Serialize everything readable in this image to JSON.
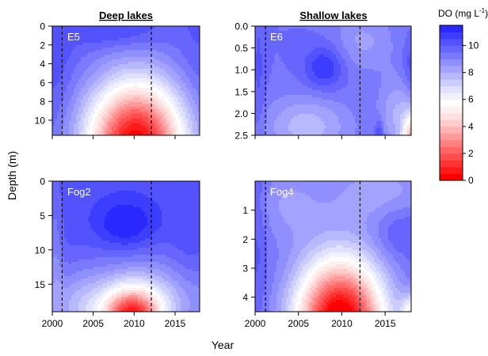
{
  "chart_data": {
    "type": "heatmap",
    "column_titles": [
      "Deep lakes",
      "Shallow lakes"
    ],
    "xlabel": "Year",
    "ylabel": "Depth (m)",
    "colorbar": {
      "title": "DO (mg L",
      "title_sup": "-1",
      "title_end": ")",
      "range": [
        0,
        11.5
      ],
      "ticks": [
        0,
        2,
        4,
        6,
        8,
        10
      ],
      "levels": [
        {
          "from": 0.0,
          "to": 0.5,
          "color": "#ff0000"
        },
        {
          "from": 0.5,
          "to": 1.0,
          "color": "#ff1a1a"
        },
        {
          "from": 1.0,
          "to": 1.5,
          "color": "#ff3333"
        },
        {
          "from": 1.5,
          "to": 2.0,
          "color": "#ff4d4d"
        },
        {
          "from": 2.0,
          "to": 2.5,
          "color": "#ff6666"
        },
        {
          "from": 2.5,
          "to": 3.0,
          "color": "#ff8080"
        },
        {
          "from": 3.0,
          "to": 3.5,
          "color": "#ff9999"
        },
        {
          "from": 3.5,
          "to": 4.0,
          "color": "#ffb3b3"
        },
        {
          "from": 4.0,
          "to": 4.5,
          "color": "#ffcccc"
        },
        {
          "from": 4.5,
          "to": 5.0,
          "color": "#ffe0e0"
        },
        {
          "from": 5.0,
          "to": 5.5,
          "color": "#fff0f0"
        },
        {
          "from": 5.5,
          "to": 6.0,
          "color": "#ffffff"
        },
        {
          "from": 6.0,
          "to": 6.5,
          "color": "#f0f0ff"
        },
        {
          "from": 6.5,
          "to": 7.0,
          "color": "#e0e0ff"
        },
        {
          "from": 7.0,
          "to": 7.5,
          "color": "#ccccff"
        },
        {
          "from": 7.5,
          "to": 8.0,
          "color": "#b8b8ff"
        },
        {
          "from": 8.0,
          "to": 8.5,
          "color": "#a3a3ff"
        },
        {
          "from": 8.5,
          "to": 9.0,
          "color": "#8f8fff"
        },
        {
          "from": 9.0,
          "to": 9.5,
          "color": "#7a7aff"
        },
        {
          "from": 9.5,
          "to": 10.0,
          "color": "#6666ff"
        },
        {
          "from": 10.0,
          "to": 10.5,
          "color": "#5252ff"
        },
        {
          "from": 10.5,
          "to": 11.0,
          "color": "#3d3dff"
        },
        {
          "from": 11.0,
          "to": 11.5,
          "color": "#2929ff"
        }
      ]
    },
    "x_range": [
      2000,
      2018
    ],
    "x_ticks": [
      2000,
      2005,
      2010,
      2015
    ],
    "vlines": [
      2001.2,
      2012.1
    ],
    "panels": [
      {
        "lake": "E5",
        "y_range": [
          0,
          11.6
        ],
        "y_ticks": [
          0,
          2,
          4,
          6,
          8,
          10
        ],
        "background": 9.9,
        "blobs": [
          {
            "x": 2010.2,
            "y": 12.5,
            "sx": 4.3,
            "sy": 4.8,
            "amp": -9.8
          },
          {
            "x": 2007.5,
            "y": 0.5,
            "sx": 4.0,
            "sy": 1.3,
            "amp": 0.9
          },
          {
            "x": 2000.5,
            "y": 3.5,
            "sx": 1.5,
            "sy": 5.0,
            "amp": 0.5
          },
          {
            "x": 2017.5,
            "y": 4.0,
            "sx": 1.5,
            "sy": 4.0,
            "amp": 0.3
          }
        ]
      },
      {
        "lake": "E6",
        "y_range": [
          0,
          2.5
        ],
        "y_ticks": [
          0.0,
          0.5,
          1.0,
          1.5,
          2.0,
          2.5
        ],
        "y_labels": [
          "0.0",
          "0.5",
          "1.0",
          "1.5",
          "2.0",
          "2.5"
        ],
        "background": 9.5,
        "blobs": [
          {
            "x": 2008.0,
            "y": 0.95,
            "sx": 1.6,
            "sy": 0.35,
            "amp": 1.6
          },
          {
            "x": 2006.0,
            "y": 2.3,
            "sx": 3.5,
            "sy": 0.5,
            "amp": -1.8
          },
          {
            "x": 2012.5,
            "y": 0.35,
            "sx": 2.5,
            "sy": 0.5,
            "amp": -1.1
          },
          {
            "x": 2016.5,
            "y": 2.0,
            "sx": 1.6,
            "sy": 0.6,
            "amp": -1.5
          },
          {
            "x": 2018.4,
            "y": 2.6,
            "sx": 0.9,
            "sy": 0.4,
            "amp": -6.5
          },
          {
            "x": 2018.0,
            "y": 0.9,
            "sx": 0.7,
            "sy": 0.4,
            "amp": 0.9
          },
          {
            "x": 2014.3,
            "y": 2.5,
            "sx": 0.35,
            "sy": 0.25,
            "amp": 1.5
          },
          {
            "x": 2000.4,
            "y": 1.2,
            "sx": 0.6,
            "sy": 1.5,
            "amp": 0.6
          }
        ]
      },
      {
        "lake": "Fog2",
        "y_range": [
          0,
          19
        ],
        "y_ticks": [
          0,
          5,
          10,
          15
        ],
        "background": 10.3,
        "blobs": [
          {
            "x": 2009.7,
            "y": 20.0,
            "sx": 2.6,
            "sy": 3.0,
            "amp": -8.0
          },
          {
            "x": 2011.5,
            "y": 17.0,
            "sx": 6.5,
            "sy": 4.5,
            "amp": -2.5
          },
          {
            "x": 2003.0,
            "y": 19.0,
            "sx": 2.5,
            "sy": 4.0,
            "amp": -1.5
          },
          {
            "x": 2009.0,
            "y": 6.3,
            "sx": 2.5,
            "sy": 2.5,
            "amp": 1.4
          },
          {
            "x": 2000.3,
            "y": 11.0,
            "sx": 0.7,
            "sy": 8.0,
            "amp": -1.0
          },
          {
            "x": 2016.5,
            "y": 12.0,
            "sx": 1.5,
            "sy": 4.0,
            "amp": 0.4
          }
        ]
      },
      {
        "lake": "Fog4",
        "y_range": [
          0,
          4.5
        ],
        "y_ticks": [
          1,
          2,
          3,
          4
        ],
        "background": 9.8,
        "blobs": [
          {
            "x": 2009.8,
            "y": 4.9,
            "sx": 3.7,
            "sy": 1.6,
            "amp": -10.5
          },
          {
            "x": 2014.5,
            "y": 0.35,
            "sx": 5.0,
            "sy": 0.9,
            "amp": -1.5
          },
          {
            "x": 2003.5,
            "y": 0.8,
            "sx": 3.0,
            "sy": 1.0,
            "amp": -1.2
          },
          {
            "x": 2016.5,
            "y": 1.7,
            "sx": 2.0,
            "sy": 0.6,
            "amp": 0.8
          },
          {
            "x": 2018.3,
            "y": 4.6,
            "sx": 1.0,
            "sy": 0.5,
            "amp": -4.0
          },
          {
            "x": 2000.3,
            "y": 1.5,
            "sx": 0.8,
            "sy": 2.0,
            "amp": 0.6
          }
        ]
      }
    ]
  }
}
